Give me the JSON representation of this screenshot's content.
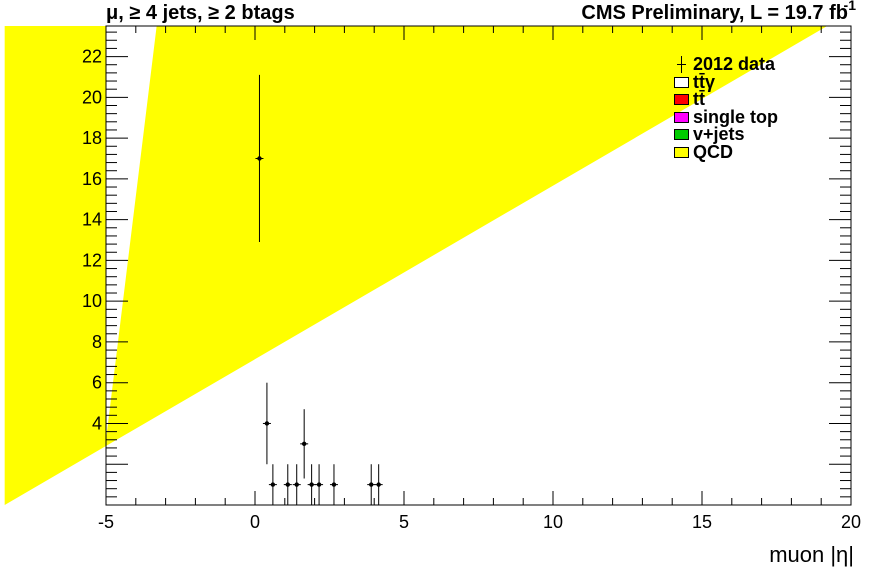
{
  "header": {
    "selection": "μ, ≥ 4 jets, ≥ 2 btags",
    "cms": "CMS Preliminary, L = 19.7 fb",
    "lumi_exp": "-1"
  },
  "colors": {
    "qcd": "#ffff00",
    "ttbar": "#ff0000",
    "single_top": "#ff00ff",
    "vjets": "#00cc00",
    "ttgamma": "#ffffff",
    "data": "#000000"
  },
  "chart_data": {
    "type": "scatter",
    "xlabel": "muon |η|",
    "ylabel": "",
    "xlim": [
      -5,
      20
    ],
    "ylim": [
      0,
      23.5
    ],
    "x_ticks": [
      -5,
      0,
      5,
      10,
      15,
      20
    ],
    "y_ticks": [
      4,
      6,
      8,
      10,
      12,
      14,
      16,
      18,
      20,
      22
    ],
    "legend_position": "top-right",
    "legend": [
      "2012 data",
      "tt̄γ",
      "tt̄",
      "single top",
      "v+jets",
      "QCD"
    ],
    "series": [
      {
        "name": "2012 data",
        "x": [
          0.15,
          0.4,
          0.6,
          1.1,
          1.4,
          1.65,
          1.9,
          2.15,
          2.65,
          3.9,
          4.15
        ],
        "y": [
          17,
          4,
          1,
          1,
          1,
          3,
          1,
          1,
          1,
          1,
          1
        ],
        "yerr_low": [
          4.1,
          2.0,
          1.0,
          1.0,
          1.0,
          1.7,
          1.0,
          1.0,
          1.0,
          1.0,
          1.0
        ],
        "yerr_high": [
          4.1,
          2.0,
          1.0,
          1.0,
          1.0,
          1.7,
          1.0,
          1.0,
          1.0,
          1.0,
          1.0
        ]
      },
      {
        "name": "QCD",
        "polygon": [
          [
            -8.4,
            0
          ],
          [
            -8.4,
            23.5
          ],
          [
            -5,
            23.5
          ],
          [
            -5,
            3.2
          ],
          [
            -3.3,
            23.5
          ],
          [
            19.2,
            23.5
          ],
          [
            -8.4,
            0
          ]
        ]
      }
    ]
  }
}
